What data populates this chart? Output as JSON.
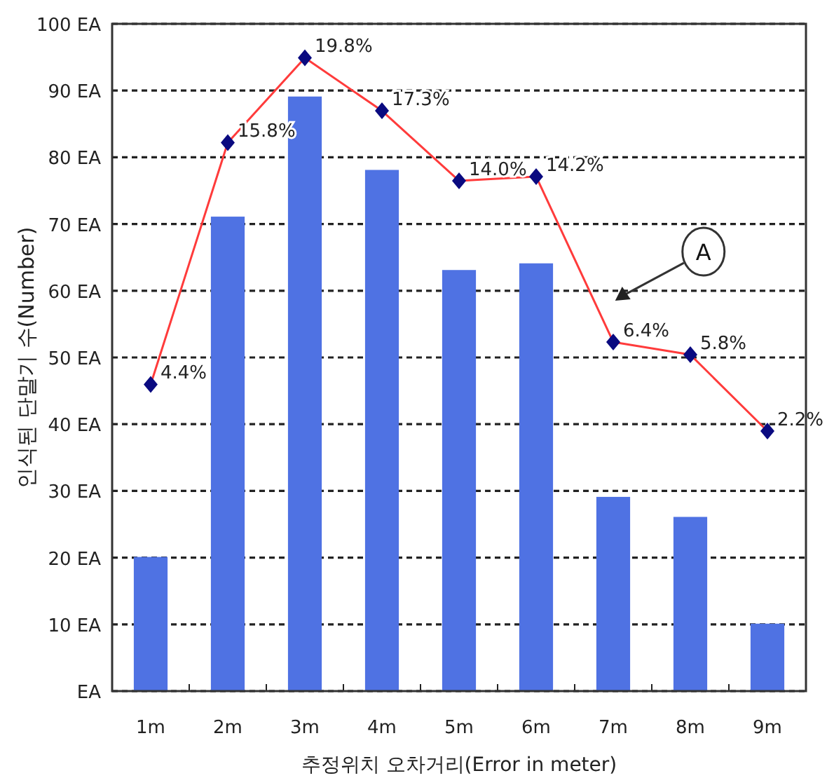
{
  "chart_data": {
    "type": "bar",
    "xlabel": "추정위치 오차거리(Error in meter)",
    "ylabel": "인식된 단말기 수(Number)",
    "categories": [
      "1m",
      "2m",
      "3m",
      "4m",
      "5m",
      "6m",
      "7m",
      "8m",
      "9m"
    ],
    "series": [
      {
        "color": "#4f72e3",
        "values": [
          20,
          71,
          89,
          78,
          63,
          64,
          29,
          26,
          10
        ]
      },
      {
        "type": "line",
        "color": "#ff3b3b",
        "marker": "diamond",
        "axis": "y2",
        "values": [
          4.4,
          15.8,
          19.8,
          17.3,
          14.0,
          14.2,
          6.4,
          5.8,
          2.2
        ],
        "value_labels": [
          "4.4%",
          "15.8%",
          "19.8%",
          "17.3%",
          "14.0%",
          "14.2%",
          "6.4%",
          "5.8%",
          "2.2%"
        ]
      }
    ],
    "ylim": [
      0,
      100
    ],
    "yticks": [
      {
        "value": 0,
        "label": "EA"
      },
      {
        "value": 10,
        "label": "10 EA"
      },
      {
        "value": 20,
        "label": "20 EA"
      },
      {
        "value": 30,
        "label": "30 EA"
      },
      {
        "value": 40,
        "label": "40 EA"
      },
      {
        "value": 50,
        "label": "50 EA"
      },
      {
        "value": 60,
        "label": "60 EA"
      },
      {
        "value": 70,
        "label": "70 EA"
      },
      {
        "value": 80,
        "label": "80 EA"
      },
      {
        "value": 90,
        "label": "90 EA"
      },
      {
        "value": 100,
        "label": "100 EA"
      }
    ],
    "y2lim": [
      -10.06,
      21.4
    ],
    "grid": "y",
    "annotations": [
      "A"
    ]
  }
}
